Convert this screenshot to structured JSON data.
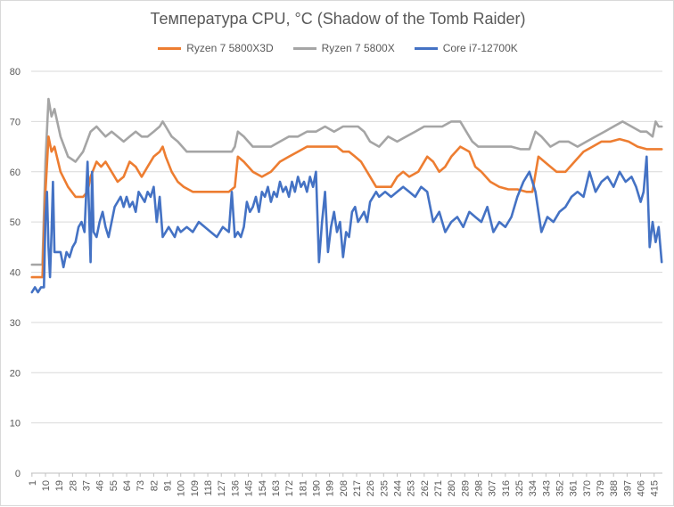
{
  "chart_data": {
    "type": "line",
    "title": "Температура CPU, °C (Shadow of the Tomb Raider)",
    "xlabel": "",
    "ylabel": "",
    "ylim": [
      0,
      80
    ],
    "yticks": [
      0,
      10,
      20,
      30,
      40,
      50,
      60,
      70,
      80
    ],
    "x_count": 420,
    "x_tick_labels": [
      "1",
      "10",
      "19",
      "28",
      "37",
      "46",
      "55",
      "64",
      "73",
      "82",
      "91",
      "100",
      "109",
      "118",
      "127",
      "136",
      "145",
      "154",
      "163",
      "172",
      "181",
      "190",
      "199",
      "208",
      "217",
      "226",
      "235",
      "244",
      "253",
      "262",
      "271",
      "280",
      "289",
      "298",
      "307",
      "316",
      "325",
      "334",
      "343",
      "352",
      "361",
      "370",
      "379",
      "388",
      "397",
      "406",
      "415"
    ],
    "grid": "horizontal",
    "legend_position": "top",
    "series": [
      {
        "name": "Ryzen 7 5800X3D",
        "color": "#ED7D31",
        "x": [
          1,
          4,
          8,
          10,
          12,
          14,
          16,
          20,
          25,
          30,
          35,
          38,
          40,
          44,
          47,
          50,
          54,
          58,
          62,
          66,
          70,
          74,
          78,
          82,
          86,
          88,
          90,
          94,
          98,
          102,
          108,
          114,
          120,
          126,
          132,
          136,
          138,
          142,
          148,
          154,
          160,
          166,
          172,
          178,
          184,
          190,
          196,
          200,
          204,
          208,
          212,
          216,
          220,
          224,
          230,
          236,
          240,
          244,
          248,
          252,
          258,
          264,
          268,
          272,
          276,
          280,
          286,
          292,
          296,
          300,
          306,
          312,
          318,
          324,
          330,
          334,
          338,
          342,
          346,
          350,
          356,
          362,
          368,
          374,
          380,
          386,
          392,
          398,
          404,
          410,
          415,
          420
        ],
        "values": [
          39,
          39,
          39,
          56,
          67,
          64,
          65,
          60,
          57,
          55,
          55,
          56,
          59,
          62,
          61,
          62,
          60,
          58,
          59,
          62,
          61,
          59,
          61,
          63,
          64,
          65,
          63,
          60,
          58,
          57,
          56,
          56,
          56,
          56,
          56,
          57,
          63,
          62,
          60,
          59,
          60,
          62,
          63,
          64,
          65,
          65,
          65,
          65,
          65,
          64,
          64,
          63,
          62,
          60,
          57,
          57,
          57,
          59,
          60,
          59,
          60,
          63,
          62,
          60,
          61,
          63,
          65,
          64,
          61,
          60,
          58,
          57,
          56.5,
          56.5,
          56,
          56,
          63,
          62,
          61,
          60,
          60,
          62,
          64,
          65,
          66,
          66,
          66.5,
          66,
          65,
          64.5,
          64.5,
          64.5
        ]
      },
      {
        "name": "Ryzen 7 5800X",
        "color": "#A5A5A5",
        "x": [
          1,
          4,
          8,
          10,
          12,
          14,
          16,
          20,
          25,
          30,
          35,
          40,
          44,
          47,
          50,
          54,
          58,
          62,
          66,
          70,
          74,
          78,
          82,
          86,
          88,
          90,
          94,
          98,
          104,
          110,
          116,
          122,
          128,
          134,
          136,
          138,
          142,
          148,
          154,
          160,
          166,
          172,
          178,
          184,
          190,
          196,
          202,
          208,
          214,
          218,
          222,
          226,
          232,
          238,
          244,
          250,
          256,
          262,
          268,
          274,
          280,
          286,
          290,
          294,
          298,
          302,
          308,
          314,
          320,
          326,
          332,
          336,
          340,
          346,
          352,
          358,
          364,
          370,
          376,
          382,
          388,
          394,
          400,
          406,
          410,
          414,
          416,
          418,
          420
        ],
        "values": [
          41.5,
          41.5,
          41.5,
          62,
          74.5,
          71,
          72.5,
          67,
          63,
          62,
          64,
          68,
          69,
          68,
          67,
          68,
          67,
          66,
          67,
          68,
          67,
          67,
          68,
          69,
          70,
          69,
          67,
          66,
          64,
          64,
          64,
          64,
          64,
          64,
          65,
          68,
          67,
          65,
          65,
          65,
          66,
          67,
          67,
          68,
          68,
          69,
          68,
          69,
          69,
          69,
          68,
          66,
          65,
          67,
          66,
          67,
          68,
          69,
          69,
          69,
          70,
          70,
          68,
          66,
          65,
          65,
          65,
          65,
          65,
          64.5,
          64.5,
          68,
          67,
          65,
          66,
          66,
          65,
          66,
          67,
          68,
          69,
          70,
          69,
          68,
          68,
          67,
          70,
          69,
          69
        ]
      },
      {
        "name": "Core i7-12700K",
        "color": "#4472C4",
        "x": [
          1,
          3,
          5,
          7,
          9,
          10,
          11,
          12,
          13,
          14,
          15,
          16,
          18,
          20,
          22,
          24,
          26,
          28,
          30,
          32,
          34,
          36,
          38,
          40,
          41,
          42,
          44,
          46,
          48,
          50,
          52,
          54,
          56,
          58,
          60,
          62,
          64,
          66,
          68,
          70,
          72,
          74,
          76,
          78,
          80,
          82,
          84,
          86,
          88,
          90,
          92,
          94,
          96,
          98,
          100,
          104,
          108,
          112,
          116,
          120,
          124,
          128,
          132,
          134,
          136,
          138,
          140,
          142,
          144,
          146,
          148,
          150,
          152,
          154,
          156,
          158,
          160,
          162,
          164,
          166,
          168,
          170,
          172,
          174,
          176,
          178,
          180,
          182,
          184,
          186,
          188,
          190,
          192,
          194,
          196,
          198,
          200,
          202,
          204,
          206,
          208,
          210,
          212,
          214,
          216,
          218,
          220,
          222,
          224,
          226,
          228,
          230,
          232,
          236,
          240,
          244,
          248,
          252,
          256,
          260,
          264,
          268,
          272,
          276,
          280,
          284,
          288,
          292,
          296,
          300,
          304,
          308,
          312,
          316,
          320,
          324,
          328,
          332,
          336,
          340,
          344,
          348,
          352,
          356,
          360,
          364,
          368,
          372,
          376,
          380,
          384,
          388,
          392,
          396,
          400,
          403,
          406,
          408,
          410,
          412,
          414,
          416,
          418,
          420
        ],
        "values": [
          36,
          37,
          36,
          37,
          37,
          51,
          56,
          45,
          39,
          48,
          58,
          44,
          44,
          44,
          41,
          44,
          43,
          45,
          46,
          49,
          50,
          48,
          62,
          42,
          60,
          48,
          47,
          50,
          52,
          49,
          47,
          50,
          53,
          54,
          55,
          53,
          55,
          53,
          54,
          52,
          56,
          55,
          54,
          56,
          55,
          57,
          50,
          55,
          47,
          48,
          49,
          48,
          47,
          49,
          48,
          49,
          48,
          50,
          49,
          48,
          47,
          49,
          48,
          56,
          47,
          48,
          47,
          49,
          54,
          52,
          53,
          55,
          52,
          56,
          55,
          57,
          54,
          56,
          55,
          58,
          56,
          57,
          55,
          58,
          56,
          59,
          57,
          58,
          56,
          59,
          57,
          60,
          42,
          50,
          56,
          44,
          49,
          52,
          48,
          50,
          43,
          48,
          47,
          52,
          53,
          50,
          51,
          52,
          50,
          54,
          55,
          56,
          55,
          56,
          55,
          56,
          57,
          56,
          55,
          57,
          56,
          50,
          52,
          48,
          50,
          51,
          49,
          52,
          51,
          50,
          53,
          48,
          50,
          49,
          51,
          55,
          58,
          60,
          56,
          48,
          51,
          50,
          52,
          53,
          55,
          56,
          55,
          60,
          56,
          58,
          59,
          57,
          60,
          58,
          59,
          57,
          54,
          56,
          63,
          45,
          50,
          46,
          49,
          42
        ]
      }
    ]
  }
}
